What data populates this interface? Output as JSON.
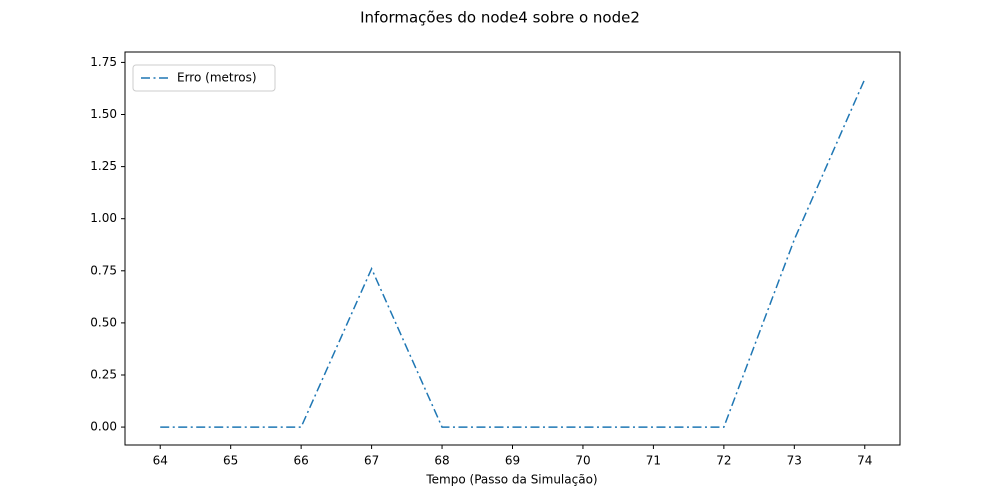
{
  "chart_data": {
    "type": "line",
    "title": "Informações do node4 sobre o node2",
    "xlabel": "Tempo (Passo da Simulação)",
    "x": [
      64,
      65,
      66,
      67,
      68,
      69,
      70,
      71,
      72,
      73,
      74
    ],
    "series": [
      {
        "name": "Erro (metros)",
        "color": "#1f77b4",
        "values": [
          0,
          0,
          0,
          0.76,
          0,
          0,
          0,
          0,
          0,
          0.9,
          1.67
        ]
      }
    ],
    "xlim": [
      63.5,
      74.5
    ],
    "ylim": [
      -0.086,
      1.8
    ],
    "xticks": [
      64,
      65,
      66,
      67,
      68,
      69,
      70,
      71,
      72,
      73,
      74
    ],
    "yticks": [
      {
        "value": 0,
        "label": "0.00"
      },
      {
        "value": 0.25,
        "label": "0.25"
      },
      {
        "value": 0.5,
        "label": "0.50"
      },
      {
        "value": 0.75,
        "label": "0.75"
      },
      {
        "value": 1,
        "label": "1.00"
      },
      {
        "value": 1.25,
        "label": "1.25"
      },
      {
        "value": 1.5,
        "label": "1.50"
      },
      {
        "value": 1.75,
        "label": "1.75"
      }
    ],
    "legend": "upper left",
    "line_style": "dashdot"
  }
}
